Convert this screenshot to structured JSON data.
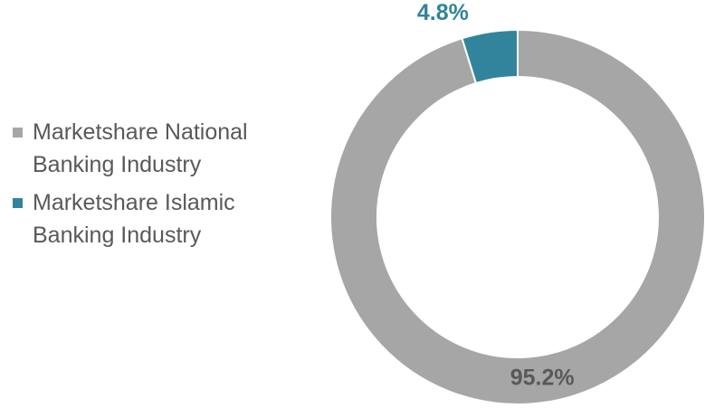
{
  "chart_data": {
    "type": "donut",
    "series": [
      {
        "name": "Marketshare National Banking Industry",
        "color": "#a6a6a6",
        "values": [
          95.2
        ],
        "value_labels": [
          "95.2%"
        ],
        "label_color": "#595959"
      },
      {
        "name": "Marketshare Islamic Banking Industry",
        "color": "#31849b",
        "values": [
          4.8
        ],
        "value_labels": [
          "4.8%"
        ],
        "label_color": "#31849b"
      }
    ]
  }
}
